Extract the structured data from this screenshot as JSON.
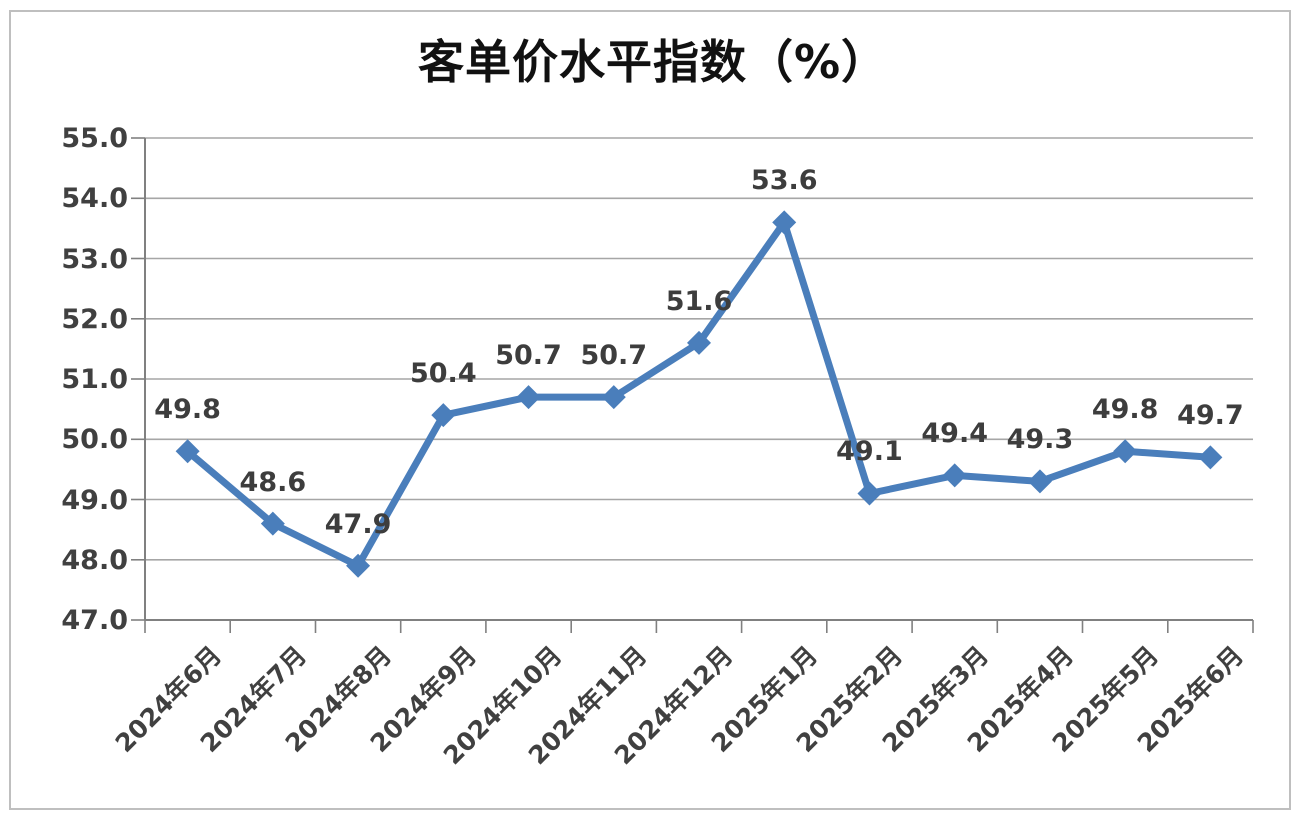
{
  "chart_data": {
    "type": "line",
    "title": "客单价水平指数（%）",
    "categories": [
      "2024年6月",
      "2024年7月",
      "2024年8月",
      "2024年9月",
      "2024年10月",
      "2024年11月",
      "2024年12月",
      "2025年1月",
      "2025年2月",
      "2025年3月",
      "2025年4月",
      "2025年5月",
      "2025年6月"
    ],
    "values": [
      49.8,
      48.6,
      47.9,
      50.4,
      50.7,
      50.7,
      51.6,
      53.6,
      49.1,
      49.4,
      49.3,
      49.8,
      49.7
    ],
    "data_labels": [
      "49.8",
      "48.6",
      "47.9",
      "50.4",
      "50.7",
      "50.7",
      "51.6",
      "53.6",
      "49.1",
      "49.4",
      "49.3",
      "49.8",
      "49.7"
    ],
    "xlabel": "",
    "ylabel": "",
    "ylim": [
      47.0,
      55.0
    ],
    "ytick_step": 1.0,
    "ytick_labels": [
      "55.0",
      "54.0",
      "53.0",
      "52.0",
      "51.0",
      "50.0",
      "49.0",
      "48.0",
      "47.0"
    ],
    "grid": "horizontal",
    "legend": "none",
    "marker": "diamond",
    "colors": {
      "line": "#4A7EBB",
      "marker": "#4A7EBB",
      "grid": "#A6A6A6",
      "axis": "#808080",
      "tick_text": "#404040",
      "data_label_text": "#3D3D3D",
      "title_text": "#111111",
      "border": "#BFBFBF",
      "background": "#FFFFFF"
    }
  }
}
